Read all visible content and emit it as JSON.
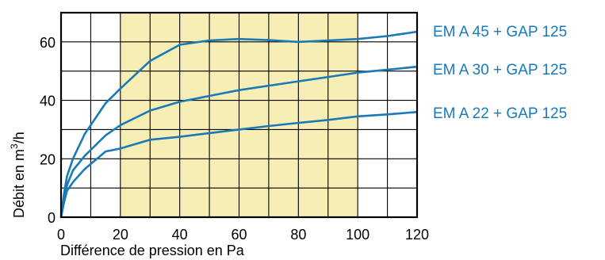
{
  "chart_data": {
    "type": "line",
    "xlabel": "Différence de pression en Pa",
    "ylabel_main": "Débit en m",
    "ylabel_sup": "3",
    "ylabel_tail": "/h",
    "xlim": [
      0,
      120
    ],
    "ylim": [
      0,
      70
    ],
    "x_ticks": [
      0,
      20,
      40,
      60,
      80,
      100,
      120
    ],
    "y_ticks": [
      0,
      20,
      40,
      60
    ],
    "x_grid_step": 10,
    "y_grid_step": 10,
    "grid": true,
    "highlight_band": {
      "x_from": 20,
      "x_to": 100,
      "color": "#f6eeb5"
    },
    "line_color": "#1a7ab8",
    "legend_placement": "right",
    "series": [
      {
        "name": "EM A 45 + GAP 125",
        "points": [
          [
            0,
            0
          ],
          [
            1,
            8
          ],
          [
            2,
            14
          ],
          [
            4,
            20
          ],
          [
            8,
            28.5
          ],
          [
            15,
            39
          ],
          [
            20,
            44
          ],
          [
            30,
            53.5
          ],
          [
            40,
            59
          ],
          [
            50,
            60.5
          ],
          [
            60,
            61
          ],
          [
            70,
            60.6
          ],
          [
            80,
            60
          ],
          [
            90,
            60.5
          ],
          [
            100,
            61
          ],
          [
            110,
            62
          ],
          [
            120,
            63.5
          ]
        ]
      },
      {
        "name": "EM A 30 + GAP 125",
        "points": [
          [
            0,
            0
          ],
          [
            1,
            6
          ],
          [
            2,
            11
          ],
          [
            4,
            16
          ],
          [
            8,
            21
          ],
          [
            15,
            28
          ],
          [
            20,
            31.5
          ],
          [
            30,
            36.5
          ],
          [
            40,
            39.5
          ],
          [
            50,
            41.5
          ],
          [
            60,
            43.5
          ],
          [
            70,
            45
          ],
          [
            80,
            46.5
          ],
          [
            90,
            48
          ],
          [
            100,
            49.5
          ],
          [
            110,
            50.5
          ],
          [
            120,
            51.5
          ]
        ]
      },
      {
        "name": "EM A 22 + GAP 125",
        "points": [
          [
            0,
            0
          ],
          [
            1,
            5
          ],
          [
            2,
            9
          ],
          [
            4,
            12
          ],
          [
            8,
            16.5
          ],
          [
            15,
            22.5
          ],
          [
            20,
            23.5
          ],
          [
            30,
            26.5
          ],
          [
            40,
            27.5
          ],
          [
            50,
            28.8
          ],
          [
            60,
            30
          ],
          [
            70,
            31.2
          ],
          [
            80,
            32.3
          ],
          [
            90,
            33.3
          ],
          [
            100,
            34.5
          ],
          [
            110,
            35.2
          ],
          [
            120,
            36
          ]
        ]
      }
    ]
  }
}
